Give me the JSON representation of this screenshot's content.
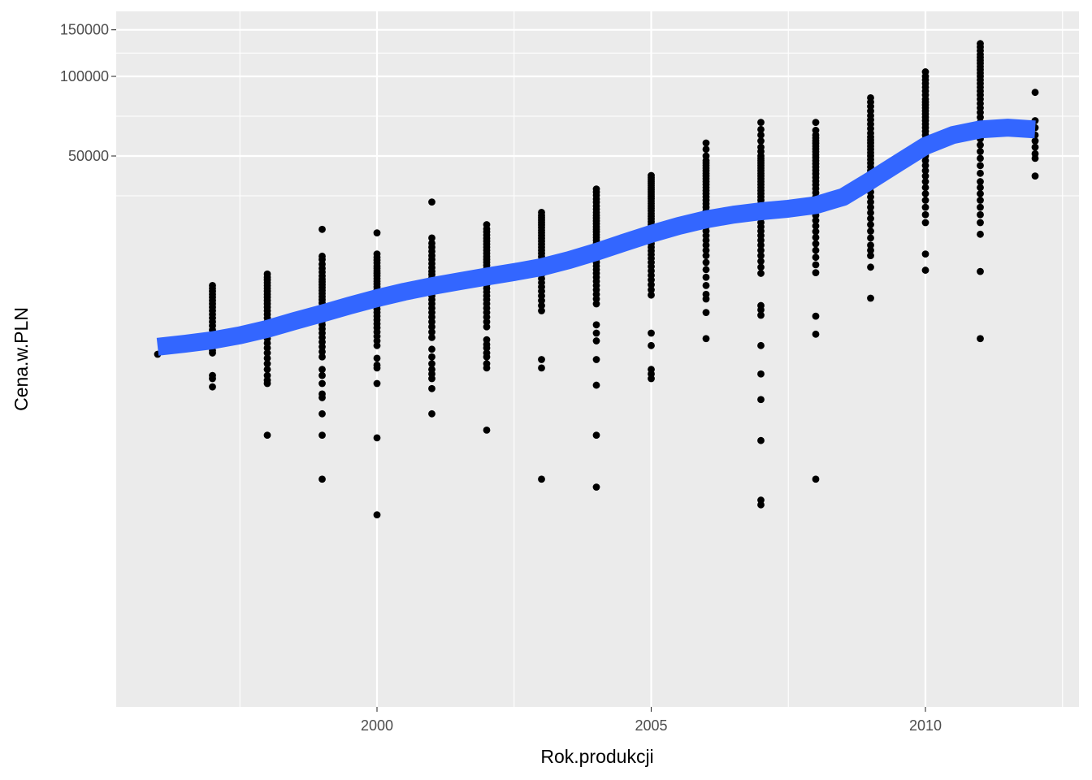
{
  "chart_data": {
    "type": "scatter",
    "title": "",
    "xlabel": "Rok.produkcji",
    "ylabel": "Cena.w.PLN",
    "xlim": [
      1995.5,
      2012.5
    ],
    "ylim": [
      1000,
      160000
    ],
    "y_scale": "log",
    "grid": true,
    "legend": "none",
    "x_ticks": [
      2000,
      2005,
      2010
    ],
    "x_tick_labels": [
      "2000",
      "2005",
      "2010"
    ],
    "y_ticks": [
      50000,
      100000,
      150000
    ],
    "y_tick_labels": [
      "50000",
      "100000",
      "150000"
    ],
    "colors": {
      "panel": "#ebebeb",
      "grid": "#ffffff",
      "points": "#000000",
      "smooth": "#3366ff",
      "tick_text": "#4d4d4d",
      "axis_title": "#000000"
    },
    "points_by_year": [
      {
        "x": 1996,
        "y": [
          8900
        ]
      },
      {
        "x": 1997,
        "y": [
          9200,
          9500,
          9800,
          10200,
          10600,
          11000,
          11400,
          11800,
          12200,
          12600,
          13000,
          13400,
          13800,
          14200,
          14600,
          15000,
          15400,
          15800,
          16200,
          9000,
          7400,
          7200,
          6700
        ]
      },
      {
        "x": 1998,
        "y": [
          7400,
          7800,
          8200,
          8600,
          9000,
          9400,
          9800,
          10200,
          10600,
          11000,
          11400,
          11800,
          12200,
          12600,
          13000,
          13400,
          13800,
          14200,
          14600,
          15000,
          15400,
          15800,
          16200,
          16600,
          17000,
          17400,
          17900,
          7100,
          6900,
          4400
        ]
      },
      {
        "x": 1999,
        "y": [
          8700,
          9100,
          9500,
          9900,
          10300,
          10700,
          11100,
          11500,
          11900,
          12300,
          12700,
          13100,
          13500,
          13900,
          14300,
          14700,
          15100,
          15500,
          15900,
          16300,
          16700,
          17100,
          17600,
          18200,
          18800,
          19500,
          20300,
          20900,
          26400,
          7800,
          7400,
          6900,
          6300,
          6100,
          5300,
          4400,
          3000
        ]
      },
      {
        "x": 2000,
        "y": [
          9600,
          10000,
          10400,
          10800,
          11200,
          11600,
          12000,
          12400,
          12800,
          13200,
          13600,
          14000,
          14400,
          14800,
          15200,
          15600,
          16000,
          16400,
          16800,
          17200,
          17600,
          18000,
          18400,
          18800,
          19200,
          19700,
          20200,
          20700,
          21300,
          25600,
          8600,
          8100,
          7900,
          6900,
          4300,
          2200
        ]
      },
      {
        "x": 2001,
        "y": [
          10300,
          10800,
          11300,
          11800,
          12300,
          12800,
          13300,
          13800,
          14300,
          14800,
          15300,
          15800,
          16300,
          16800,
          17300,
          17800,
          18300,
          18900,
          19600,
          20300,
          21000,
          21800,
          22600,
          23400,
          24500,
          33500,
          9300,
          8700,
          8200,
          7800,
          7500,
          7200,
          6600,
          5300
        ]
      },
      {
        "x": 2002,
        "y": [
          11300,
          11800,
          12300,
          12800,
          13300,
          13800,
          14300,
          14800,
          15300,
          15800,
          16300,
          16800,
          17300,
          17800,
          18300,
          18800,
          19300,
          19800,
          20300,
          20800,
          21400,
          22000,
          22600,
          23200,
          23800,
          24400,
          25100,
          25800,
          26500,
          27500,
          10100,
          9700,
          9400,
          9000,
          8700,
          8200,
          7900,
          4600
        ]
      },
      {
        "x": 2003,
        "y": [
          13000,
          13600,
          14200,
          14800,
          15400,
          16000,
          16600,
          17200,
          17800,
          18400,
          19000,
          19600,
          20200,
          20800,
          21400,
          22000,
          22600,
          23200,
          23800,
          24400,
          25000,
          25600,
          26200,
          26800,
          27400,
          28000,
          28600,
          29200,
          29800,
          30600,
          8500,
          7900,
          3000
        ]
      },
      {
        "x": 2004,
        "y": [
          13800,
          14400,
          15000,
          15600,
          16200,
          16800,
          17400,
          18000,
          18600,
          19200,
          19800,
          20400,
          21000,
          21600,
          22200,
          22800,
          23400,
          24000,
          24600,
          25200,
          25800,
          26400,
          27000,
          27700,
          28400,
          29100,
          29800,
          30600,
          31500,
          32400,
          33400,
          34400,
          35500,
          36500,
          37500,
          11500,
          10700,
          10000,
          8500,
          6800,
          4400,
          2800
        ]
      },
      {
        "x": 2005,
        "y": [
          14900,
          15600,
          16300,
          17000,
          17700,
          18400,
          19100,
          19800,
          20500,
          21200,
          21900,
          22600,
          23300,
          24000,
          24700,
          25400,
          26100,
          26800,
          27500,
          28200,
          28900,
          29600,
          30300,
          31000,
          31700,
          32400,
          33100,
          33800,
          34500,
          35200,
          35900,
          36600,
          37300,
          38000,
          38700,
          39400,
          40100,
          40800,
          41500,
          42200,
          10700,
          9600,
          7800,
          7500,
          7200
        ]
      },
      {
        "x": 2006,
        "y": [
          14400,
          15000,
          16200,
          17400,
          18600,
          19800,
          21000,
          22000,
          23000,
          24000,
          25000,
          26000,
          27000,
          28000,
          29000,
          30000,
          31000,
          32000,
          33000,
          34000,
          35000,
          36000,
          37000,
          38000,
          39000,
          40000,
          41000,
          42000,
          43000,
          44000,
          45000,
          46000,
          47000,
          48000,
          50000,
          53000,
          56000,
          12800,
          10200
        ]
      },
      {
        "x": 2007,
        "y": [
          18000,
          19000,
          20000,
          21000,
          22000,
          23000,
          24000,
          25000,
          26000,
          27000,
          28000,
          29000,
          30000,
          31000,
          32000,
          33000,
          34000,
          35000,
          36000,
          37000,
          38000,
          39000,
          40000,
          41000,
          42000,
          43000,
          44000,
          45000,
          46000,
          47000,
          48000,
          49000,
          50000,
          52000,
          54000,
          57000,
          60000,
          63000,
          67000,
          13600,
          13100,
          12500,
          9600,
          7500,
          6000,
          4200,
          2500,
          2400
        ]
      },
      {
        "x": 2008,
        "y": [
          18100,
          19400,
          20700,
          22000,
          23300,
          24600,
          25900,
          27200,
          28500,
          29800,
          31100,
          32400,
          33700,
          35000,
          36300,
          37600,
          38900,
          40200,
          41500,
          42800,
          44100,
          45400,
          46700,
          48000,
          49300,
          50600,
          51900,
          53200,
          54500,
          55800,
          57100,
          58500,
          60000,
          62500,
          67000,
          12400,
          10600,
          3000
        ]
      },
      {
        "x": 2009,
        "y": [
          21000,
          22000,
          23000,
          24500,
          26000,
          27500,
          29000,
          30500,
          32000,
          33500,
          35000,
          36500,
          38000,
          39500,
          41000,
          42500,
          44000,
          45500,
          47000,
          48500,
          50000,
          51500,
          53000,
          54500,
          56000,
          57500,
          59000,
          61000,
          63500,
          66000,
          68500,
          71000,
          74000,
          77000,
          80000,
          83000,
          19000,
          14500
        ]
      },
      {
        "x": 2010,
        "y": [
          28000,
          30000,
          32000,
          34000,
          36000,
          38000,
          40000,
          42000,
          44000,
          46000,
          48000,
          50000,
          52000,
          54000,
          56000,
          58000,
          60000,
          62000,
          64000,
          66000,
          68000,
          70000,
          72000,
          74000,
          76000,
          78000,
          80000,
          82000,
          85000,
          88000,
          91000,
          94000,
          97000,
          100000,
          104000,
          21300,
          18500
        ]
      },
      {
        "x": 2011,
        "y": [
          28000,
          30000,
          32000,
          34000,
          36000,
          38000,
          40000,
          43000,
          46000,
          49000,
          52000,
          55000,
          58000,
          61000,
          64000,
          67000,
          70000,
          73000,
          76000,
          79000,
          82000,
          85000,
          88000,
          91000,
          94000,
          97000,
          100000,
          103000,
          106000,
          109000,
          112000,
          115000,
          118000,
          121000,
          125000,
          129000,
          133000,
          25300,
          18300,
          10200
        ]
      },
      {
        "x": 2012,
        "y": [
          87000,
          68000,
          64000,
          60000,
          57000,
          54000,
          51000,
          49000,
          42000
        ]
      }
    ],
    "smooth_line": {
      "name": "",
      "x": [
        1996,
        1996.5,
        1997,
        1997.5,
        1998,
        1998.5,
        1999,
        1999.5,
        2000,
        2000.5,
        2001,
        2001.5,
        2002,
        2002.5,
        2003,
        2003.5,
        2004,
        2004.5,
        2005,
        2005.5,
        2006,
        2006.5,
        2007,
        2007.5,
        2008,
        2008.5,
        2009,
        2009.5,
        2010,
        2010.5,
        2011,
        2011.5,
        2012
      ],
      "y": [
        9500,
        9750,
        10050,
        10500,
        11100,
        11900,
        12700,
        13600,
        14500,
        15350,
        16100,
        16800,
        17500,
        18200,
        19000,
        20200,
        21700,
        23500,
        25400,
        27200,
        28800,
        30000,
        30900,
        31600,
        32600,
        35000,
        40400,
        47000,
        54600,
        60000,
        63000,
        64000,
        63000
      ]
    }
  }
}
